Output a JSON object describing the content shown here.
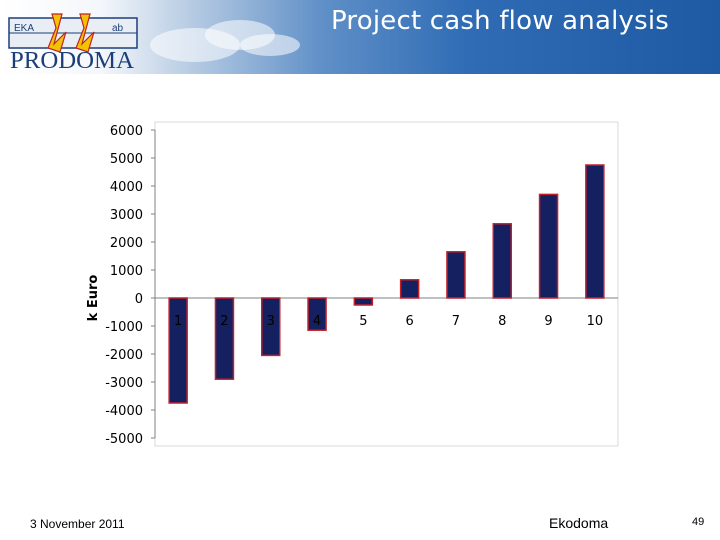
{
  "header": {
    "title": "Project cash flow analysis",
    "logo_text": "PRODOMA",
    "logo_left_tag": "EKA",
    "logo_right_tag": "ab",
    "colors": {
      "dark_blue": "#1e5aa3",
      "mid_blue": "#5f8fc7"
    }
  },
  "chart_data": {
    "type": "bar",
    "categories": [
      "1",
      "2",
      "3",
      "4",
      "5",
      "6",
      "7",
      "8",
      "9",
      "10"
    ],
    "values": [
      -3750,
      -2900,
      -2050,
      -1150,
      -250,
      650,
      1650,
      2650,
      3700,
      4750
    ],
    "title": "",
    "xlabel": "",
    "ylabel": "k Euro",
    "ylim": [
      -5000,
      6000
    ],
    "yticks": [
      6000,
      5000,
      4000,
      3000,
      2000,
      1000,
      0,
      -1000,
      -2000,
      -3000,
      -4000,
      -5000
    ],
    "grid": false,
    "legend": "none",
    "bar_fill": "#14205f",
    "bar_stroke": "#c0202a"
  },
  "footer": {
    "date": "3 November 2011",
    "company": "Ekodoma",
    "page": "49"
  }
}
